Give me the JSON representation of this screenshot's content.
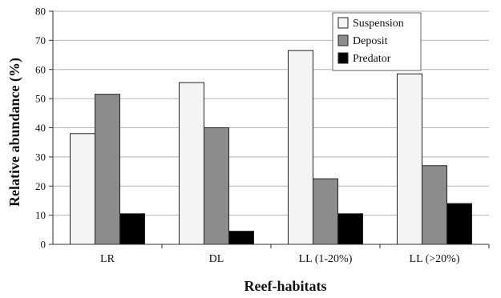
{
  "chart_data": {
    "type": "bar",
    "categories": [
      "LR",
      "DL",
      "LL (1-20%)",
      "LL (>20%)"
    ],
    "series": [
      {
        "name": "Suspension",
        "values": [
          38,
          55.5,
          66.5,
          58.5
        ],
        "color": "#f4f4f4"
      },
      {
        "name": "Deposit",
        "values": [
          51.5,
          40,
          22.5,
          27
        ],
        "color": "#8c8c8c"
      },
      {
        "name": "Predator",
        "values": [
          10.5,
          4.5,
          10.5,
          14
        ],
        "color": "#000000"
      }
    ],
    "xlabel": "Reef-habitats",
    "ylabel": "Relative abundance (%)",
    "ylim": [
      0,
      80
    ],
    "yticks": [
      0,
      10,
      20,
      30,
      40,
      50,
      60,
      70,
      80
    ],
    "grid": true,
    "legend_position": "top-right"
  }
}
